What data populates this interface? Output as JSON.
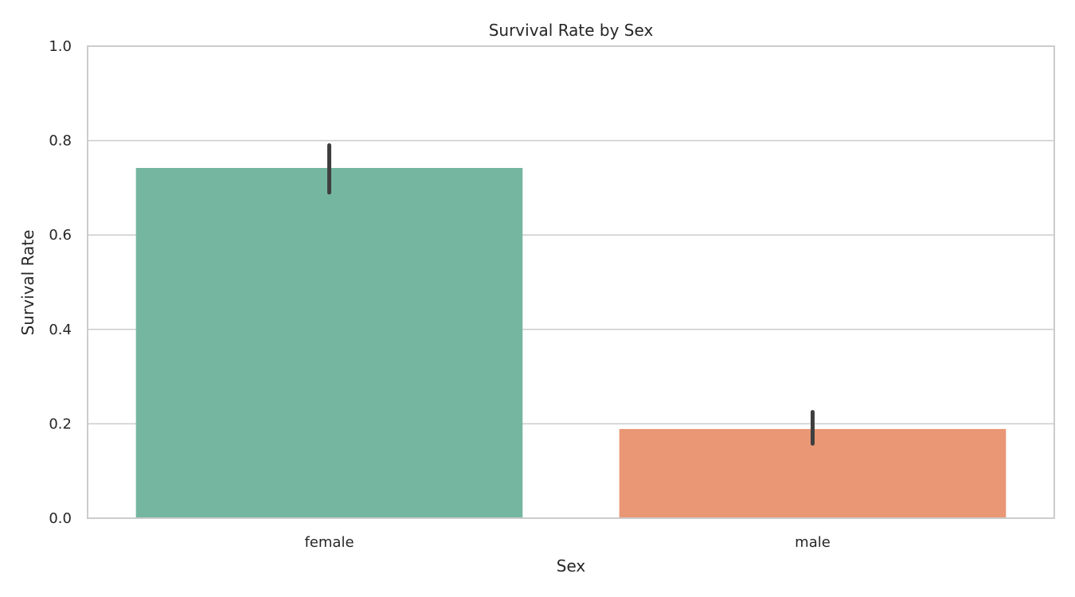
{
  "chart_data": {
    "type": "bar",
    "title": "Survival Rate by Sex",
    "xlabel": "Sex",
    "ylabel": "Survival Rate",
    "categories": [
      "female",
      "male"
    ],
    "values": [
      0.742,
      0.189
    ],
    "error_low": [
      0.69,
      0.158
    ],
    "error_high": [
      0.79,
      0.225
    ],
    "colors": [
      "#75b6a1",
      "#e99775"
    ],
    "error_color": "#3f3f3f",
    "ylim": [
      0,
      1.0
    ],
    "yticks": [
      0.0,
      0.2,
      0.4,
      0.6,
      0.8,
      1.0
    ],
    "ytick_labels": [
      "0.0",
      "0.2",
      "0.4",
      "0.6",
      "0.8",
      "1.0"
    ],
    "grid": "horizontal",
    "legend": "none"
  }
}
